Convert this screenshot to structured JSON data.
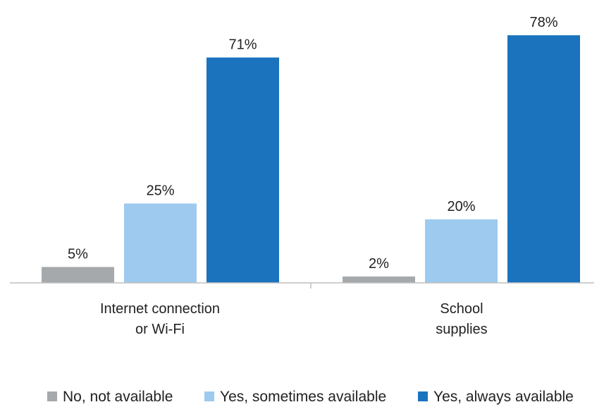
{
  "chart_data": {
    "type": "bar",
    "categories": [
      [
        "Internet connection",
        "or Wi-Fi"
      ],
      [
        "School",
        "supplies"
      ]
    ],
    "series": [
      {
        "name": "No, not available",
        "values": [
          5,
          2
        ],
        "labels": [
          "5%",
          "2%"
        ],
        "color": "#a5a9ac"
      },
      {
        "name": "Yes, sometimes available",
        "values": [
          25,
          20
        ],
        "labels": [
          "25%",
          "20%"
        ],
        "color": "#9dcaee"
      },
      {
        "name": "Yes, always available",
        "values": [
          71,
          78
        ],
        "labels": [
          "71%",
          "78%"
        ],
        "color": "#1b73be"
      }
    ],
    "ylim": [
      0,
      100
    ],
    "grid": false,
    "legend_position": "bottom"
  }
}
